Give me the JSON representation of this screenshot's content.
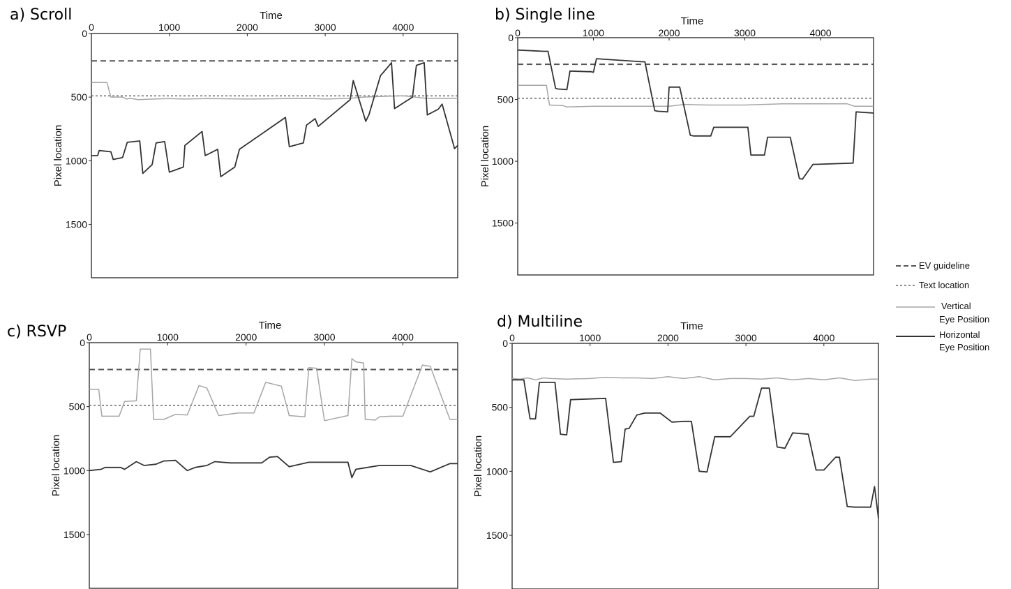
{
  "legend": {
    "ev_guideline": "EV guideline",
    "text_location": "Text location",
    "vertical_line1": "Vertical",
    "vertical_line2": "Eye Position",
    "horizontal_line1": "Horizontal",
    "horizontal_line2": "Eye Position"
  },
  "colors": {
    "horizontal": "#333333",
    "vertical": "#a6a6a6",
    "ev_guideline": "#555555",
    "text_location": "#666666",
    "frame": "#222222"
  },
  "chart_data": [
    {
      "type": "line",
      "title": "a) Scroll",
      "xlabel": "Time",
      "ylabel": "Pixel location",
      "xlim": [
        0,
        4700
      ],
      "ylim": [
        0,
        1920
      ],
      "y_inverted": true,
      "xticks": [
        0,
        1000,
        2000,
        3000,
        4000
      ],
      "yticks": [
        0,
        500,
        1000,
        1500
      ],
      "ev_guideline": 215,
      "text_location": 490,
      "series": [
        {
          "name": "Vertical Eye Position",
          "x": [
            0,
            200,
            250,
            400,
            450,
            500,
            600,
            800,
            1000,
            1200,
            1500,
            2000,
            2500,
            2800,
            3000,
            3300,
            3500,
            3700,
            4000,
            4300,
            4700
          ],
          "y": [
            385,
            385,
            500,
            500,
            515,
            510,
            520,
            515,
            512,
            515,
            512,
            515,
            512,
            510,
            515,
            510,
            500,
            495,
            490,
            510,
            510
          ]
        },
        {
          "name": "Horizontal Eye Position",
          "x": [
            0,
            80,
            100,
            250,
            280,
            400,
            460,
            620,
            660,
            780,
            830,
            940,
            1000,
            1180,
            1200,
            1420,
            1460,
            1620,
            1660,
            1840,
            1900,
            2490,
            2540,
            2720,
            2760,
            2870,
            2910,
            3320,
            3360,
            3520,
            3560,
            3710,
            3740,
            3850,
            3890,
            4120,
            4170,
            4270,
            4310,
            4450,
            4500,
            4660,
            4700
          ],
          "y": [
            960,
            960,
            920,
            930,
            990,
            975,
            855,
            845,
            1100,
            1030,
            860,
            850,
            1090,
            1050,
            880,
            770,
            960,
            910,
            1125,
            1050,
            910,
            660,
            890,
            860,
            720,
            670,
            730,
            520,
            370,
            690,
            640,
            330,
            310,
            230,
            590,
            500,
            250,
            230,
            640,
            595,
            555,
            905,
            880
          ]
        }
      ]
    },
    {
      "type": "line",
      "title": "b) Single line",
      "xlabel": "Time",
      "ylabel": "Pixel location",
      "xlim": [
        0,
        4700
      ],
      "ylim": [
        0,
        1920
      ],
      "y_inverted": true,
      "xticks": [
        0,
        1000,
        2000,
        3000,
        4000
      ],
      "yticks": [
        0,
        500,
        1000,
        1500
      ],
      "ev_guideline": 215,
      "text_location": 490,
      "series": [
        {
          "name": "Vertical Eye Position",
          "x": [
            0,
            380,
            420,
            600,
            650,
            1000,
            1500,
            2000,
            2200,
            2500,
            3000,
            3500,
            4000,
            4350,
            4450,
            4700
          ],
          "y": [
            385,
            385,
            545,
            550,
            560,
            555,
            555,
            555,
            540,
            545,
            545,
            535,
            535,
            535,
            555,
            555
          ]
        },
        {
          "name": "Horizontal Eye Position",
          "x": [
            0,
            340,
            400,
            500,
            530,
            650,
            690,
            930,
            970,
            1000,
            1040,
            1640,
            1680,
            1810,
            1850,
            1980,
            2000,
            2100,
            2140,
            2280,
            2320,
            2550,
            2590,
            3040,
            3080,
            3260,
            3300,
            3560,
            3600,
            3720,
            3760,
            3900,
            3940,
            4430,
            4470,
            4700
          ],
          "y": [
            100,
            110,
            110,
            410,
            415,
            420,
            270,
            275,
            275,
            280,
            170,
            195,
            195,
            590,
            595,
            600,
            400,
            400,
            400,
            790,
            795,
            795,
            725,
            725,
            950,
            950,
            805,
            805,
            805,
            1140,
            1145,
            1025,
            1025,
            1015,
            600,
            610
          ]
        }
      ]
    },
    {
      "type": "line",
      "title": "c) RSVP",
      "xlabel": "Time",
      "ylabel": "Pixel location",
      "xlim": [
        0,
        4700
      ],
      "ylim": [
        0,
        1920
      ],
      "y_inverted": true,
      "xticks": [
        0,
        1000,
        2000,
        3000,
        4000
      ],
      "yticks": [
        0,
        500,
        1000,
        1500
      ],
      "ev_guideline": 210,
      "text_location": 490,
      "series": [
        {
          "name": "Vertical Eye Position",
          "x": [
            0,
            120,
            160,
            380,
            450,
            600,
            650,
            780,
            820,
            950,
            1100,
            1250,
            1400,
            1500,
            1650,
            1900,
            2100,
            2250,
            2450,
            2550,
            2750,
            2800,
            2900,
            3000,
            3300,
            3350,
            3400,
            3500,
            3520,
            3650,
            3700,
            3850,
            4000,
            4250,
            4350,
            4600,
            4700
          ],
          "y": [
            365,
            365,
            575,
            575,
            460,
            455,
            50,
            50,
            600,
            600,
            560,
            565,
            335,
            355,
            570,
            550,
            550,
            310,
            340,
            570,
            580,
            195,
            200,
            610,
            570,
            125,
            150,
            160,
            600,
            605,
            580,
            575,
            575,
            175,
            185,
            600,
            600
          ]
        },
        {
          "name": "Horizontal Eye Position",
          "x": [
            0,
            150,
            200,
            400,
            450,
            600,
            700,
            850,
            950,
            1100,
            1250,
            1350,
            1500,
            1600,
            1800,
            2000,
            2200,
            2300,
            2400,
            2550,
            2800,
            3000,
            3300,
            3350,
            3400,
            3500,
            3700,
            3900,
            4000,
            4100,
            4350,
            4600,
            4700
          ],
          "y": [
            1000,
            990,
            975,
            975,
            990,
            930,
            960,
            950,
            925,
            920,
            1000,
            975,
            960,
            930,
            940,
            940,
            940,
            895,
            890,
            970,
            935,
            935,
            935,
            1055,
            990,
            980,
            960,
            960,
            960,
            960,
            1010,
            945,
            945
          ]
        }
      ]
    },
    {
      "type": "line",
      "title": "d) Multiline",
      "xlabel": "Time",
      "ylabel": "Pixel location",
      "xlim": [
        0,
        4700
      ],
      "ylim": [
        0,
        1920
      ],
      "y_inverted": true,
      "xticks": [
        0,
        1000,
        2000,
        3000,
        4000
      ],
      "yticks": [
        0,
        500,
        1000,
        1500
      ],
      "ev_guideline": null,
      "text_location": null,
      "series": [
        {
          "name": "Vertical Eye Position",
          "x": [
            0,
            100,
            200,
            300,
            400,
            500,
            700,
            1000,
            1200,
            1400,
            1600,
            1800,
            2000,
            2200,
            2400,
            2600,
            2800,
            3000,
            3200,
            3400,
            3600,
            3800,
            4000,
            4200,
            4400,
            4600,
            4700
          ],
          "y": [
            275,
            280,
            270,
            285,
            270,
            275,
            280,
            275,
            265,
            270,
            270,
            275,
            260,
            275,
            260,
            285,
            275,
            275,
            280,
            270,
            285,
            275,
            285,
            270,
            290,
            280,
            280
          ]
        },
        {
          "name": "Horizontal Eye Position",
          "x": [
            0,
            150,
            230,
            300,
            350,
            550,
            620,
            700,
            750,
            1200,
            1300,
            1400,
            1450,
            1500,
            1600,
            1700,
            1900,
            2050,
            2200,
            2300,
            2400,
            2500,
            2600,
            2750,
            2800,
            3050,
            3100,
            3200,
            3300,
            3400,
            3500,
            3600,
            3800,
            3900,
            4000,
            4150,
            4200,
            4300,
            4400,
            4600,
            4650,
            4700
          ],
          "y": [
            285,
            285,
            590,
            590,
            305,
            305,
            710,
            715,
            440,
            430,
            930,
            925,
            670,
            665,
            560,
            545,
            545,
            615,
            610,
            610,
            1000,
            1005,
            730,
            730,
            730,
            570,
            570,
            350,
            350,
            810,
            820,
            700,
            710,
            990,
            990,
            890,
            890,
            1275,
            1280,
            1280,
            1120,
            1365
          ]
        }
      ]
    }
  ]
}
